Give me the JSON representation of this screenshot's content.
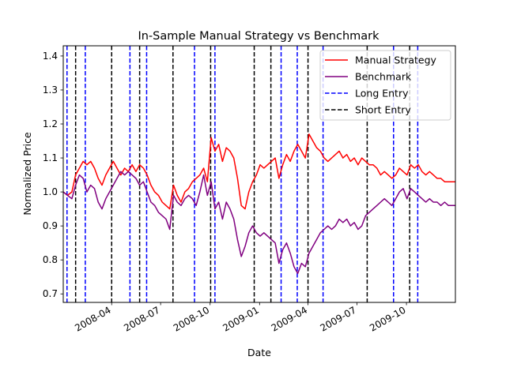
{
  "chart_data": {
    "type": "line",
    "title": "In-Sample Manual Strategy vs Benchmark",
    "xlabel": "Date",
    "ylabel": "Normalized Price",
    "xlim": [
      "2008-01-02",
      "2009-12-31"
    ],
    "ylim": [
      0.675,
      1.43
    ],
    "yticks": [
      0.7,
      0.8,
      0.9,
      1.0,
      1.1,
      1.2,
      1.3,
      1.4
    ],
    "ytick_labels": [
      "0.7",
      "0.8",
      "0.9",
      "1.0",
      "1.1",
      "1.2",
      "1.3",
      "1.4"
    ],
    "xticks": [
      "2008-04-01",
      "2008-07-01",
      "2008-10-01",
      "2009-01-01",
      "2009-04-01",
      "2009-07-01",
      "2009-10-01"
    ],
    "xtick_labels": [
      "2008-04",
      "2008-07",
      "2008-10",
      "2009-01",
      "2009-04",
      "2009-07",
      "2009-10"
    ],
    "grid": false,
    "legend_position": "top-right",
    "series": [
      {
        "name": "Manual Strategy",
        "color": "#ff0000",
        "points": [
          [
            "2008-01-02",
            1.0
          ],
          [
            "2008-01-10",
            0.99
          ],
          [
            "2008-01-18",
            1.0
          ],
          [
            "2008-01-25",
            1.05
          ],
          [
            "2008-02-01",
            1.07
          ],
          [
            "2008-02-08",
            1.09
          ],
          [
            "2008-02-15",
            1.08
          ],
          [
            "2008-02-22",
            1.09
          ],
          [
            "2008-02-29",
            1.07
          ],
          [
            "2008-03-07",
            1.04
          ],
          [
            "2008-03-14",
            1.02
          ],
          [
            "2008-03-21",
            1.05
          ],
          [
            "2008-03-28",
            1.07
          ],
          [
            "2008-04-04",
            1.09
          ],
          [
            "2008-04-11",
            1.07
          ],
          [
            "2008-04-18",
            1.05
          ],
          [
            "2008-04-25",
            1.07
          ],
          [
            "2008-05-02",
            1.06
          ],
          [
            "2008-05-09",
            1.08
          ],
          [
            "2008-05-16",
            1.06
          ],
          [
            "2008-05-23",
            1.08
          ],
          [
            "2008-05-30",
            1.07
          ],
          [
            "2008-06-06",
            1.05
          ],
          [
            "2008-06-13",
            1.02
          ],
          [
            "2008-06-20",
            1.0
          ],
          [
            "2008-06-27",
            0.99
          ],
          [
            "2008-07-04",
            0.97
          ],
          [
            "2008-07-11",
            0.96
          ],
          [
            "2008-07-18",
            0.95
          ],
          [
            "2008-07-25",
            1.02
          ],
          [
            "2008-08-01",
            0.99
          ],
          [
            "2008-08-08",
            0.97
          ],
          [
            "2008-08-15",
            1.0
          ],
          [
            "2008-08-22",
            1.01
          ],
          [
            "2008-08-29",
            1.03
          ],
          [
            "2008-09-05",
            1.04
          ],
          [
            "2008-09-12",
            1.05
          ],
          [
            "2008-09-19",
            1.07
          ],
          [
            "2008-09-26",
            1.03
          ],
          [
            "2008-10-03",
            1.16
          ],
          [
            "2008-10-10",
            1.12
          ],
          [
            "2008-10-17",
            1.14
          ],
          [
            "2008-10-24",
            1.09
          ],
          [
            "2008-10-31",
            1.13
          ],
          [
            "2008-11-07",
            1.12
          ],
          [
            "2008-11-14",
            1.1
          ],
          [
            "2008-11-21",
            1.04
          ],
          [
            "2008-11-28",
            0.96
          ],
          [
            "2008-12-05",
            0.95
          ],
          [
            "2008-12-12",
            1.0
          ],
          [
            "2008-12-19",
            1.03
          ],
          [
            "2008-12-26",
            1.05
          ],
          [
            "2009-01-02",
            1.08
          ],
          [
            "2009-01-09",
            1.07
          ],
          [
            "2009-01-16",
            1.08
          ],
          [
            "2009-01-23",
            1.09
          ],
          [
            "2009-01-30",
            1.1
          ],
          [
            "2009-02-06",
            1.04
          ],
          [
            "2009-02-13",
            1.08
          ],
          [
            "2009-02-20",
            1.11
          ],
          [
            "2009-02-27",
            1.09
          ],
          [
            "2009-03-06",
            1.12
          ],
          [
            "2009-03-13",
            1.14
          ],
          [
            "2009-03-20",
            1.12
          ],
          [
            "2009-03-27",
            1.1
          ],
          [
            "2009-04-03",
            1.17
          ],
          [
            "2009-04-10",
            1.15
          ],
          [
            "2009-04-17",
            1.13
          ],
          [
            "2009-04-24",
            1.12
          ],
          [
            "2009-05-01",
            1.1
          ],
          [
            "2009-05-08",
            1.09
          ],
          [
            "2009-05-15",
            1.1
          ],
          [
            "2009-05-22",
            1.11
          ],
          [
            "2009-05-29",
            1.12
          ],
          [
            "2009-06-05",
            1.1
          ],
          [
            "2009-06-12",
            1.11
          ],
          [
            "2009-06-19",
            1.09
          ],
          [
            "2009-06-26",
            1.1
          ],
          [
            "2009-07-03",
            1.08
          ],
          [
            "2009-07-10",
            1.1
          ],
          [
            "2009-07-17",
            1.09
          ],
          [
            "2009-07-24",
            1.08
          ],
          [
            "2009-07-31",
            1.08
          ],
          [
            "2009-08-07",
            1.07
          ],
          [
            "2009-08-14",
            1.05
          ],
          [
            "2009-08-21",
            1.06
          ],
          [
            "2009-08-28",
            1.05
          ],
          [
            "2009-09-04",
            1.04
          ],
          [
            "2009-09-11",
            1.05
          ],
          [
            "2009-09-18",
            1.07
          ],
          [
            "2009-09-25",
            1.06
          ],
          [
            "2009-10-02",
            1.05
          ],
          [
            "2009-10-09",
            1.08
          ],
          [
            "2009-10-16",
            1.07
          ],
          [
            "2009-10-23",
            1.08
          ],
          [
            "2009-10-30",
            1.06
          ],
          [
            "2009-11-06",
            1.05
          ],
          [
            "2009-11-13",
            1.06
          ],
          [
            "2009-11-20",
            1.05
          ],
          [
            "2009-11-27",
            1.04
          ],
          [
            "2009-12-04",
            1.04
          ],
          [
            "2009-12-11",
            1.03
          ],
          [
            "2009-12-18",
            1.03
          ],
          [
            "2009-12-31",
            1.03
          ]
        ]
      },
      {
        "name": "Benchmark",
        "color": "#800080",
        "points": [
          [
            "2008-01-02",
            1.0
          ],
          [
            "2008-01-10",
            0.99
          ],
          [
            "2008-01-18",
            0.98
          ],
          [
            "2008-01-25",
            1.02
          ],
          [
            "2008-02-01",
            1.05
          ],
          [
            "2008-02-08",
            1.04
          ],
          [
            "2008-02-15",
            1.0
          ],
          [
            "2008-02-22",
            1.02
          ],
          [
            "2008-02-29",
            1.01
          ],
          [
            "2008-03-07",
            0.97
          ],
          [
            "2008-03-14",
            0.95
          ],
          [
            "2008-03-21",
            0.98
          ],
          [
            "2008-03-28",
            1.0
          ],
          [
            "2008-04-04",
            1.02
          ],
          [
            "2008-04-11",
            1.04
          ],
          [
            "2008-04-18",
            1.06
          ],
          [
            "2008-04-25",
            1.05
          ],
          [
            "2008-05-02",
            1.06
          ],
          [
            "2008-05-09",
            1.05
          ],
          [
            "2008-05-16",
            1.04
          ],
          [
            "2008-05-23",
            1.02
          ],
          [
            "2008-05-30",
            1.03
          ],
          [
            "2008-06-06",
            1.0
          ],
          [
            "2008-06-13",
            0.97
          ],
          [
            "2008-06-20",
            0.96
          ],
          [
            "2008-06-27",
            0.94
          ],
          [
            "2008-07-04",
            0.93
          ],
          [
            "2008-07-11",
            0.92
          ],
          [
            "2008-07-18",
            0.89
          ],
          [
            "2008-07-25",
            0.99
          ],
          [
            "2008-08-01",
            0.97
          ],
          [
            "2008-08-08",
            0.96
          ],
          [
            "2008-08-15",
            0.98
          ],
          [
            "2008-08-22",
            0.99
          ],
          [
            "2008-08-29",
            0.98
          ],
          [
            "2008-09-05",
            0.96
          ],
          [
            "2008-09-12",
            1.0
          ],
          [
            "2008-09-19",
            1.05
          ],
          [
            "2008-09-26",
            0.99
          ],
          [
            "2008-10-03",
            1.03
          ],
          [
            "2008-10-10",
            0.95
          ],
          [
            "2008-10-17",
            0.97
          ],
          [
            "2008-10-24",
            0.92
          ],
          [
            "2008-10-31",
            0.97
          ],
          [
            "2008-11-07",
            0.95
          ],
          [
            "2008-11-14",
            0.92
          ],
          [
            "2008-11-21",
            0.86
          ],
          [
            "2008-11-28",
            0.81
          ],
          [
            "2008-12-05",
            0.84
          ],
          [
            "2008-12-12",
            0.88
          ],
          [
            "2008-12-19",
            0.9
          ],
          [
            "2008-12-26",
            0.88
          ],
          [
            "2009-01-02",
            0.87
          ],
          [
            "2009-01-09",
            0.88
          ],
          [
            "2009-01-16",
            0.87
          ],
          [
            "2009-01-23",
            0.86
          ],
          [
            "2009-01-30",
            0.85
          ],
          [
            "2009-02-06",
            0.79
          ],
          [
            "2009-02-13",
            0.83
          ],
          [
            "2009-02-20",
            0.85
          ],
          [
            "2009-02-27",
            0.82
          ],
          [
            "2009-03-06",
            0.78
          ],
          [
            "2009-03-13",
            0.76
          ],
          [
            "2009-03-20",
            0.79
          ],
          [
            "2009-03-27",
            0.78
          ],
          [
            "2009-04-03",
            0.82
          ],
          [
            "2009-04-10",
            0.84
          ],
          [
            "2009-04-17",
            0.86
          ],
          [
            "2009-04-24",
            0.88
          ],
          [
            "2009-05-01",
            0.89
          ],
          [
            "2009-05-08",
            0.9
          ],
          [
            "2009-05-15",
            0.89
          ],
          [
            "2009-05-22",
            0.9
          ],
          [
            "2009-05-29",
            0.92
          ],
          [
            "2009-06-05",
            0.91
          ],
          [
            "2009-06-12",
            0.92
          ],
          [
            "2009-06-19",
            0.9
          ],
          [
            "2009-06-26",
            0.91
          ],
          [
            "2009-07-03",
            0.89
          ],
          [
            "2009-07-10",
            0.9
          ],
          [
            "2009-07-17",
            0.93
          ],
          [
            "2009-07-24",
            0.94
          ],
          [
            "2009-07-31",
            0.95
          ],
          [
            "2009-08-07",
            0.96
          ],
          [
            "2009-08-14",
            0.97
          ],
          [
            "2009-08-21",
            0.98
          ],
          [
            "2009-08-28",
            0.97
          ],
          [
            "2009-09-04",
            0.96
          ],
          [
            "2009-09-11",
            0.98
          ],
          [
            "2009-09-18",
            1.0
          ],
          [
            "2009-09-25",
            1.01
          ],
          [
            "2009-10-02",
            0.98
          ],
          [
            "2009-10-09",
            1.01
          ],
          [
            "2009-10-16",
            1.0
          ],
          [
            "2009-10-23",
            0.99
          ],
          [
            "2009-10-30",
            0.98
          ],
          [
            "2009-11-06",
            0.97
          ],
          [
            "2009-11-13",
            0.98
          ],
          [
            "2009-11-20",
            0.97
          ],
          [
            "2009-11-27",
            0.97
          ],
          [
            "2009-12-04",
            0.96
          ],
          [
            "2009-12-11",
            0.97
          ],
          [
            "2009-12-18",
            0.96
          ],
          [
            "2009-12-31",
            0.96
          ]
        ]
      }
    ],
    "vlines": [
      {
        "name": "Long Entry",
        "color": "#0000ff",
        "style": "dashed",
        "dates": [
          "2008-01-09",
          "2008-02-12",
          "2008-05-05",
          "2008-06-05",
          "2008-09-02",
          "2008-10-10",
          "2009-02-10",
          "2009-03-12",
          "2009-04-29",
          "2009-09-07",
          "2009-10-22"
        ]
      },
      {
        "name": "Short Entry",
        "color": "#000000",
        "style": "dashed",
        "dates": [
          "2008-01-25",
          "2008-04-01",
          "2008-05-23",
          "2008-07-24",
          "2008-10-02",
          "2008-12-22",
          "2009-01-22",
          "2009-04-01",
          "2009-07-20",
          "2009-10-07"
        ]
      }
    ]
  }
}
